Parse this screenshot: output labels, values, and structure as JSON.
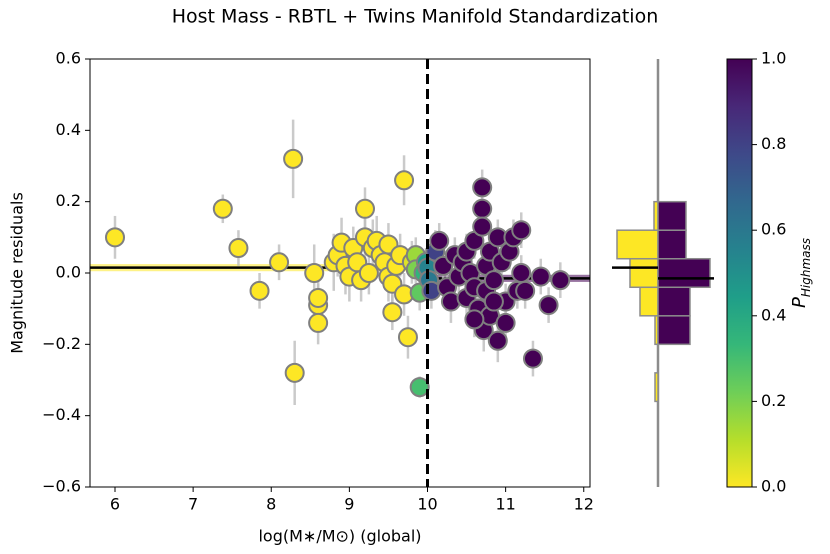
{
  "chart_data": [
    {
      "type": "scatter",
      "title": "Host Mass - RBTL + Twins Manifold Standardization",
      "xlabel": "log(M∗/M⊙) (global)",
      "ylabel": "Magnitude residuals",
      "xlim": [
        5.68,
        12.08
      ],
      "ylim": [
        -0.6,
        0.6
      ],
      "xticks": [
        6,
        7,
        8,
        9,
        10,
        11,
        12
      ],
      "yticks": [
        {
          "value": -0.6,
          "label": "−0.6"
        },
        {
          "value": -0.4,
          "label": "−0.4"
        },
        {
          "value": -0.2,
          "label": "−0.2"
        },
        {
          "value": 0,
          "label": "0.0"
        },
        0.2,
        0.4,
        0.6
      ],
      "marker_edge_color": "#7f7f7f",
      "error_color": "#bdbdbd",
      "x": [
        6.0,
        7.38,
        7.58,
        7.85,
        8.1,
        8.28,
        8.3,
        8.55,
        8.6,
        8.6,
        8.6,
        8.8,
        8.85,
        8.9,
        8.95,
        9.0,
        9.05,
        9.1,
        9.15,
        9.2,
        9.2,
        9.25,
        9.3,
        9.35,
        9.4,
        9.45,
        9.5,
        9.5,
        9.55,
        9.6,
        9.65,
        9.7,
        9.7,
        9.75,
        9.55,
        9.8,
        9.85,
        9.85,
        9.9,
        9.9,
        9.95,
        9.98,
        10.0,
        10.02,
        10.05,
        10.1,
        10.15,
        10.2,
        10.25,
        10.3,
        10.35,
        10.4,
        10.45,
        10.5,
        10.5,
        10.55,
        10.6,
        10.6,
        10.65,
        10.7,
        10.7,
        10.7,
        10.72,
        10.75,
        10.75,
        10.8,
        10.8,
        10.85,
        10.9,
        10.9,
        10.95,
        11.0,
        11.0,
        11.05,
        11.1,
        11.15,
        11.2,
        11.2,
        10.6,
        10.85,
        11.25,
        11.35,
        11.45,
        11.55,
        11.7
      ],
      "y": [
        0.1,
        0.18,
        0.07,
        -0.05,
        0.03,
        0.32,
        -0.28,
        0.0,
        -0.09,
        -0.07,
        -0.14,
        0.03,
        0.05,
        0.085,
        0.02,
        -0.01,
        0.07,
        0.03,
        -0.02,
        0.1,
        0.18,
        0.0,
        0.07,
        0.09,
        0.05,
        0.03,
        0.08,
        -0.01,
        -0.03,
        0.02,
        0.05,
        0.26,
        -0.06,
        -0.18,
        -0.11,
        0.03,
        0.05,
        0.01,
        -0.055,
        -0.32,
        0.0,
        0.03,
        0.015,
        -0.02,
        -0.05,
        0.06,
        0.09,
        0.02,
        -0.04,
        -0.08,
        0.05,
        -0.01,
        0.03,
        -0.07,
        0.06,
        0.0,
        -0.04,
        0.09,
        -0.1,
        0.24,
        0.18,
        0.13,
        -0.16,
        -0.05,
        0.02,
        -0.12,
        0.06,
        -0.02,
        -0.19,
        0.1,
        0.03,
        -0.08,
        -0.14,
        0.06,
        0.1,
        -0.05,
        0.12,
        0.0,
        -0.13,
        -0.08,
        -0.05,
        -0.24,
        -0.01,
        -0.09,
        -0.02
      ],
      "yerr": [
        0.06,
        0.04,
        0.05,
        0.05,
        0.05,
        0.11,
        0.09,
        0.08,
        0.06,
        0.06,
        0.06,
        0.08,
        0.06,
        0.07,
        0.08,
        0.07,
        0.06,
        0.07,
        0.06,
        0.07,
        0.06,
        0.06,
        0.08,
        0.07,
        0.06,
        0.06,
        0.06,
        0.07,
        0.06,
        0.05,
        0.06,
        0.07,
        0.06,
        0.06,
        0.05,
        0.06,
        0.05,
        0.04,
        0.05,
        0.03,
        0.04,
        0.04,
        0.04,
        0.05,
        0.05,
        0.06,
        0.05,
        0.05,
        0.06,
        0.06,
        0.05,
        0.06,
        0.05,
        0.06,
        0.05,
        0.05,
        0.06,
        0.05,
        0.06,
        0.05,
        0.05,
        0.05,
        0.06,
        0.05,
        0.05,
        0.06,
        0.05,
        0.05,
        0.06,
        0.05,
        0.05,
        0.05,
        0.06,
        0.05,
        0.05,
        0.05,
        0.05,
        0.05,
        0.05,
        0.05,
        0.05,
        0.05,
        0.05,
        0.05,
        0.05
      ],
      "p_highmass": [
        0,
        0,
        0,
        0,
        0,
        0,
        0,
        0,
        0,
        0,
        0,
        0,
        0,
        0,
        0,
        0,
        0,
        0,
        0,
        0,
        0,
        0,
        0,
        0,
        0,
        0,
        0,
        0,
        0,
        0,
        0,
        0,
        0,
        0,
        0,
        0.05,
        0.15,
        0.2,
        0.25,
        0.3,
        0.35,
        0.45,
        0.55,
        0.6,
        0.8,
        0.8,
        1,
        1,
        1,
        1,
        1,
        1,
        1,
        1,
        1,
        1,
        1,
        1,
        1,
        1,
        1,
        1,
        1,
        1,
        1,
        1,
        1,
        1,
        1,
        1,
        1,
        1,
        1,
        1,
        1,
        1,
        1,
        1,
        1,
        1,
        1,
        1,
        1,
        1,
        1
      ],
      "step": {
        "x": 10,
        "low_mean": 0.015,
        "low_err": 0.01,
        "high_mean": -0.015,
        "high_err": 0.01,
        "low_color": "#fde725",
        "high_color": "#440154",
        "mean_line_color": "#000000"
      },
      "colorbar": {
        "label": "P",
        "label_subscript": "Highmass",
        "lim": [
          0,
          1
        ],
        "ticks": [
          {
            "value": 0,
            "label": "0.0"
          },
          0.2,
          0.4,
          0.6,
          0.8,
          {
            "value": 1,
            "label": "1.0"
          }
        ],
        "colors": [
          "#fde725",
          "#b5de2b",
          "#6ece58",
          "#35b779",
          "#1f9e89",
          "#26828e",
          "#31688e",
          "#3e4989",
          "#482878",
          "#440154"
        ]
      }
    },
    {
      "type": "histogram",
      "orientation": "horizontal",
      "bins": [
        -0.36,
        -0.28,
        -0.2,
        -0.12,
        -0.04,
        0.04,
        0.12,
        0.2
      ],
      "xlim": [
        -58,
        62
      ],
      "series": [
        {
          "name": "low",
          "color": "#fde725",
          "direction": -1,
          "values": [
            3,
            0,
            3,
            18,
            28,
            41,
            4
          ]
        },
        {
          "name": "high",
          "color": "#440154",
          "direction": 1,
          "values": [
            0,
            0,
            32,
            32,
            52,
            28,
            28
          ]
        }
      ]
    }
  ]
}
